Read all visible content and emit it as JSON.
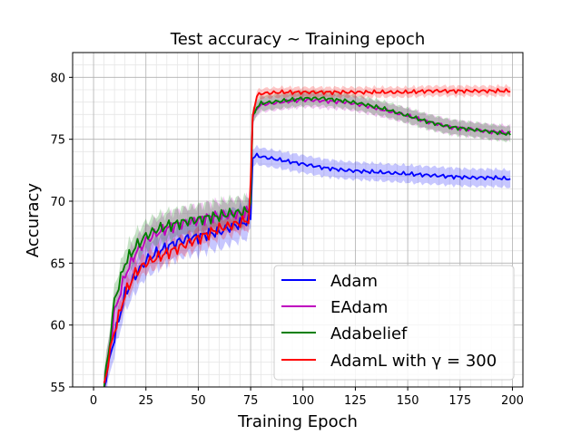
{
  "chart_data": {
    "type": "line",
    "title": "Test accuracy ~ Training epoch",
    "xlabel": "Training Epoch",
    "ylabel": "Accuracy",
    "xlim": [
      -10,
      205
    ],
    "ylim": [
      55,
      82
    ],
    "xticks": [
      0,
      25,
      50,
      75,
      100,
      125,
      150,
      175,
      200
    ],
    "yticks": [
      55,
      60,
      65,
      70,
      75,
      80
    ],
    "x_minor_step": 5,
    "y_minor_step": 1,
    "grid": true,
    "legend_position": "lower-right",
    "series": [
      {
        "name": "Adam",
        "color": "#0000ff",
        "band": 0.7,
        "x": [
          5,
          8,
          10,
          15,
          20,
          25,
          30,
          35,
          40,
          45,
          50,
          55,
          60,
          65,
          70,
          74,
          75,
          76,
          78,
          80,
          90,
          100,
          110,
          120,
          130,
          140,
          150,
          160,
          170,
          180,
          190,
          199
        ],
        "values": [
          55.0,
          57.5,
          59.0,
          62.5,
          64.0,
          65.2,
          65.8,
          66.3,
          66.7,
          67.0,
          67.1,
          67.4,
          67.5,
          67.9,
          68.2,
          68.4,
          68.6,
          73.5,
          73.7,
          73.6,
          73.3,
          73.0,
          72.7,
          72.5,
          72.4,
          72.3,
          72.2,
          72.1,
          72.0,
          71.9,
          71.9,
          71.8
        ]
      },
      {
        "name": "EAdam",
        "color": "#bf00bf",
        "band": 0.6,
        "x": [
          5,
          8,
          10,
          15,
          20,
          25,
          30,
          35,
          40,
          45,
          50,
          55,
          60,
          65,
          70,
          74,
          75,
          76,
          78,
          80,
          90,
          100,
          110,
          120,
          130,
          140,
          150,
          160,
          170,
          180,
          190,
          199
        ],
        "values": [
          55.0,
          58.5,
          61.0,
          64.0,
          65.8,
          66.8,
          67.4,
          67.8,
          68.1,
          68.3,
          68.5,
          68.7,
          68.8,
          68.9,
          69.0,
          69.1,
          70.0,
          76.8,
          77.5,
          77.8,
          78.0,
          78.2,
          78.1,
          78.0,
          77.7,
          77.3,
          76.9,
          76.4,
          76.0,
          75.8,
          75.6,
          75.5
        ]
      },
      {
        "name": "Adabelief",
        "color": "#007f00",
        "band": 0.6,
        "x": [
          5,
          8,
          10,
          15,
          20,
          25,
          30,
          35,
          40,
          45,
          50,
          55,
          60,
          65,
          70,
          74,
          75,
          76,
          78,
          80,
          90,
          100,
          110,
          120,
          130,
          140,
          150,
          160,
          170,
          180,
          190,
          199
        ],
        "values": [
          55.0,
          59.0,
          62.0,
          65.0,
          66.3,
          67.2,
          67.7,
          68.0,
          68.2,
          68.4,
          68.5,
          68.7,
          68.8,
          69.0,
          69.1,
          69.2,
          70.0,
          76.8,
          77.6,
          77.9,
          78.1,
          78.3,
          78.3,
          78.1,
          77.8,
          77.4,
          76.9,
          76.4,
          76.0,
          75.8,
          75.6,
          75.4
        ]
      },
      {
        "name": "AdamL with γ = 300",
        "color": "#ff0000",
        "band": 0.4,
        "x": [
          5,
          8,
          10,
          15,
          20,
          25,
          30,
          35,
          40,
          45,
          50,
          55,
          60,
          65,
          70,
          74,
          75,
          76,
          78,
          80,
          90,
          100,
          110,
          120,
          130,
          140,
          150,
          160,
          170,
          180,
          190,
          199
        ],
        "values": [
          55.0,
          58.0,
          59.5,
          62.5,
          64.2,
          65.0,
          65.4,
          65.8,
          66.2,
          66.6,
          67.0,
          67.4,
          67.8,
          68.0,
          68.3,
          68.5,
          71.5,
          77.0,
          78.5,
          78.7,
          78.8,
          78.8,
          78.8,
          78.8,
          78.8,
          78.8,
          78.8,
          78.9,
          78.9,
          78.9,
          78.9,
          78.9
        ]
      }
    ]
  },
  "legend": {
    "items": [
      {
        "label": "Adam",
        "color": "#0000ff"
      },
      {
        "label": "EAdam",
        "color": "#bf00bf"
      },
      {
        "label": "Adabelief",
        "color": "#007f00"
      },
      {
        "label": "AdamL with γ = 300",
        "color": "#ff0000"
      }
    ]
  }
}
